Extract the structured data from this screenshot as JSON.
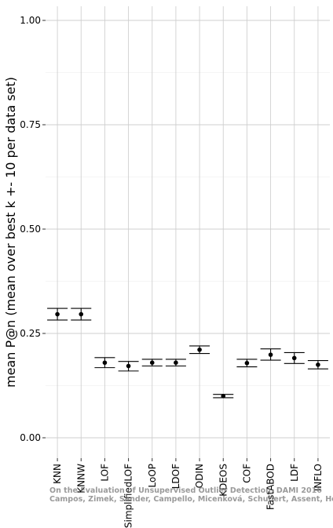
{
  "chart_data": {
    "type": "errorbar",
    "ylabel": "mean P@n (mean over best k +- 10 per data set)",
    "xlabel": "",
    "ylim": [
      0,
      1.05
    ],
    "yticks": [
      0,
      0.25,
      0.5,
      0.75,
      1.0
    ],
    "ytick_labels": [
      "0.00",
      "0.25",
      "0.50",
      "0.75",
      "1.00"
    ],
    "grid": true,
    "categories": [
      "KNN",
      "KNNW",
      "LOF",
      "SimplifiedLOF",
      "LoOP",
      "LDOF",
      "ODIN",
      "KDEOS",
      "COF",
      "FastABOD",
      "LDF",
      "INFLO"
    ],
    "values": [
      0.296,
      0.296,
      0.18,
      0.172,
      0.18,
      0.18,
      0.211,
      0.1,
      0.179,
      0.199,
      0.191,
      0.175
    ],
    "lower": [
      0.282,
      0.282,
      0.168,
      0.16,
      0.172,
      0.172,
      0.202,
      0.096,
      0.17,
      0.186,
      0.178,
      0.165
    ],
    "upper": [
      0.31,
      0.31,
      0.192,
      0.183,
      0.188,
      0.188,
      0.22,
      0.104,
      0.188,
      0.213,
      0.204,
      0.185
    ]
  },
  "watermark": {
    "line1": "On the Evaluation of Unsupervised Outlier Detection, DAMI 2016",
    "line2": "Campos, Zimek, Sander, Campello, Micenková, Schubert, Assent, Houle"
  }
}
